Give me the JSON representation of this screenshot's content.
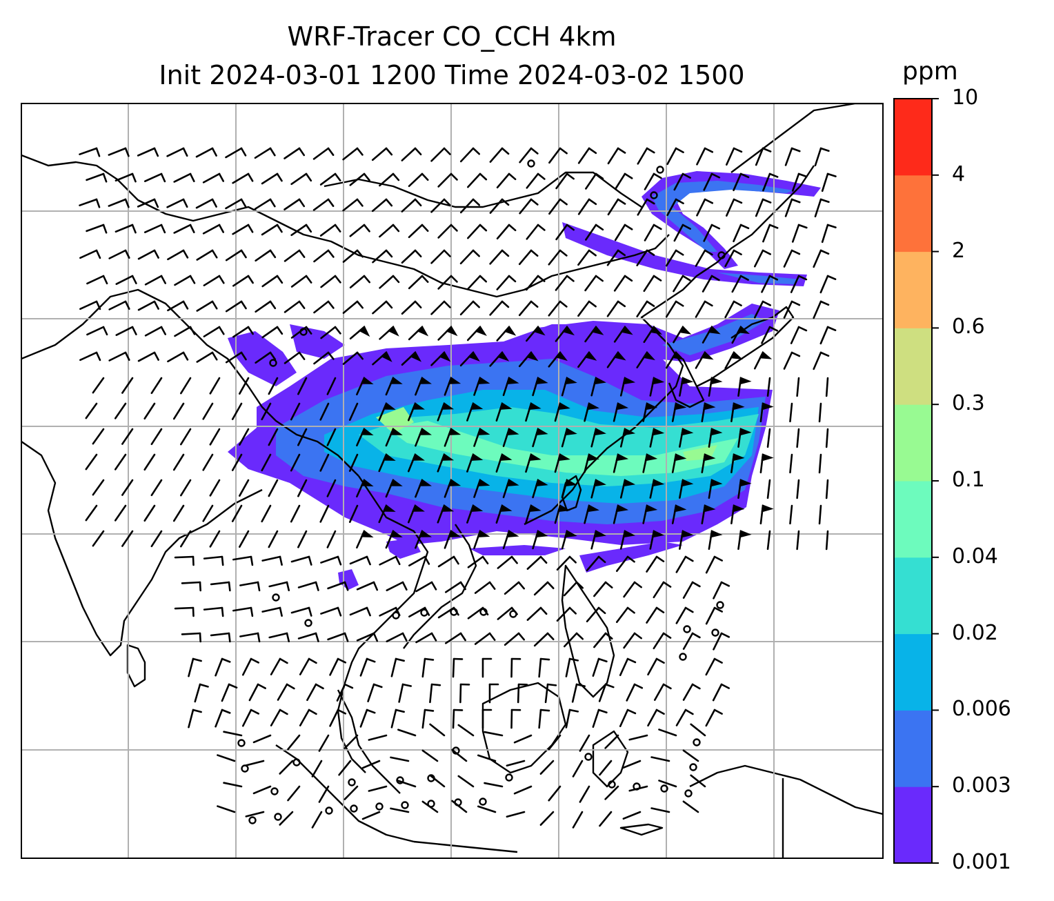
{
  "title": {
    "line1": "WRF-Tracer CO_CCH 4km",
    "line2": "Init 2024-03-01 1200 Time 2024-03-02 1500"
  },
  "colorbar": {
    "unit": "ppm",
    "levels": [
      "0.001",
      "0.003",
      "0.006",
      "0.02",
      "0.04",
      "0.1",
      "0.3",
      "0.6",
      "2",
      "4",
      "10"
    ],
    "colors": [
      "#6a2afc",
      "#3b74f2",
      "#08b3e8",
      "#35dfd2",
      "#6dfbbd",
      "#98fa92",
      "#cedf80",
      "#feb35f",
      "#fe723a",
      "#fe2a1a"
    ]
  },
  "map": {
    "coastline_color": "#000000",
    "gridline_color": "#b0b0b0",
    "wind_barb_color": "#000000",
    "field": "CO_CCH tracer concentration"
  }
}
